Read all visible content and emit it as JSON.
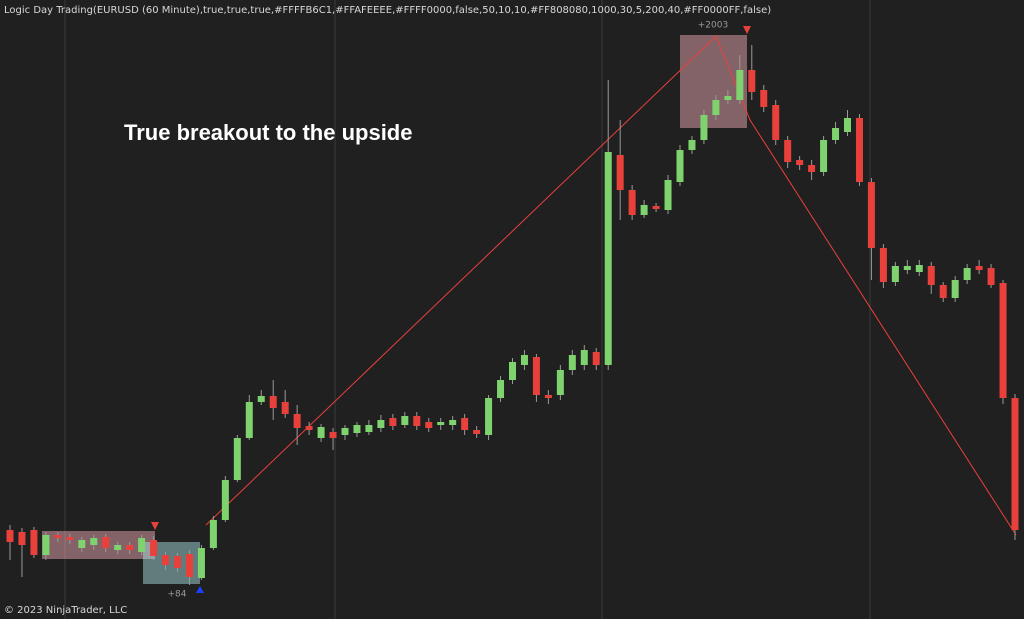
{
  "chart_data": {
    "type": "candlestick",
    "title": "Logic Day Trading(EURUSD (60 Minute),true,true,true,#FFFFB6C1,#FFAFEEEE,#FFFF0000,false,50,10,10,#FF808080,1000,30,5,200,40,#FF0000FF,false)",
    "annotations": [
      "True breakout to the upside",
      "+2003",
      "+84"
    ],
    "footer": "© 2023 NinjaTrader, LLC",
    "ylim": [
      0,
      600
    ],
    "up_color": "#7ed36f",
    "down_color": "#e8413c",
    "open": [
      70,
      68,
      70,
      45,
      65,
      63,
      52,
      55,
      63,
      50,
      55,
      48,
      60,
      45,
      44,
      46,
      22,
      52,
      80,
      120,
      162,
      198,
      204,
      198,
      186,
      174,
      162,
      168,
      165,
      167,
      168,
      172,
      182,
      175,
      184,
      178,
      175,
      175,
      182,
      170,
      165,
      202,
      220,
      235,
      243,
      205,
      205,
      230,
      235,
      248,
      235,
      445,
      410,
      385,
      394,
      390,
      418,
      450,
      460,
      485,
      500,
      500,
      530,
      510,
      495,
      460,
      440,
      435,
      428,
      460,
      468,
      482,
      418,
      352,
      318,
      330,
      328,
      334,
      315,
      302,
      320,
      334,
      332,
      317,
      202
    ],
    "close": [
      58,
      55,
      45,
      65,
      62,
      60,
      60,
      62,
      52,
      55,
      50,
      62,
      44,
      35,
      32,
      23,
      52,
      80,
      120,
      162,
      198,
      204,
      192,
      186,
      172,
      170,
      173,
      162,
      172,
      175,
      175,
      180,
      174,
      184,
      174,
      172,
      178,
      180,
      170,
      166,
      202,
      220,
      238,
      245,
      205,
      202,
      230,
      245,
      250,
      235,
      448,
      410,
      385,
      395,
      391,
      420,
      450,
      460,
      485,
      500,
      504,
      530,
      508,
      493,
      460,
      438,
      435,
      428,
      460,
      472,
      482,
      418,
      352,
      318,
      334,
      334,
      335,
      315,
      302,
      320,
      332,
      330,
      315,
      202,
      70
    ],
    "high": [
      75,
      72,
      73,
      68,
      68,
      66,
      63,
      65,
      66,
      58,
      58,
      65,
      64,
      48,
      47,
      50,
      55,
      84,
      124,
      165,
      205,
      210,
      220,
      210,
      195,
      178,
      176,
      172,
      175,
      178,
      180,
      185,
      186,
      188,
      188,
      182,
      182,
      184,
      186,
      174,
      205,
      224,
      242,
      250,
      246,
      210,
      235,
      250,
      255,
      252,
      520,
      480,
      415,
      400,
      397,
      425,
      455,
      464,
      490,
      505,
      510,
      545,
      555,
      515,
      500,
      464,
      444,
      440,
      464,
      478,
      490,
      486,
      422,
      356,
      338,
      340,
      340,
      338,
      318,
      324,
      336,
      340,
      336,
      320,
      206
    ],
    "low": [
      40,
      23,
      42,
      40,
      58,
      56,
      48,
      50,
      48,
      46,
      46,
      45,
      40,
      30,
      28,
      15,
      20,
      50,
      78,
      118,
      160,
      195,
      180,
      182,
      155,
      165,
      158,
      150,
      160,
      163,
      165,
      168,
      170,
      172,
      170,
      168,
      170,
      170,
      165,
      162,
      160,
      198,
      216,
      230,
      198,
      196,
      200,
      225,
      230,
      230,
      230,
      380,
      380,
      382,
      388,
      386,
      414,
      446,
      456,
      480,
      496,
      496,
      500,
      488,
      455,
      432,
      430,
      420,
      424,
      456,
      464,
      414,
      320,
      312,
      314,
      326,
      324,
      306,
      298,
      298,
      316,
      326,
      312,
      196,
      60
    ]
  }
}
